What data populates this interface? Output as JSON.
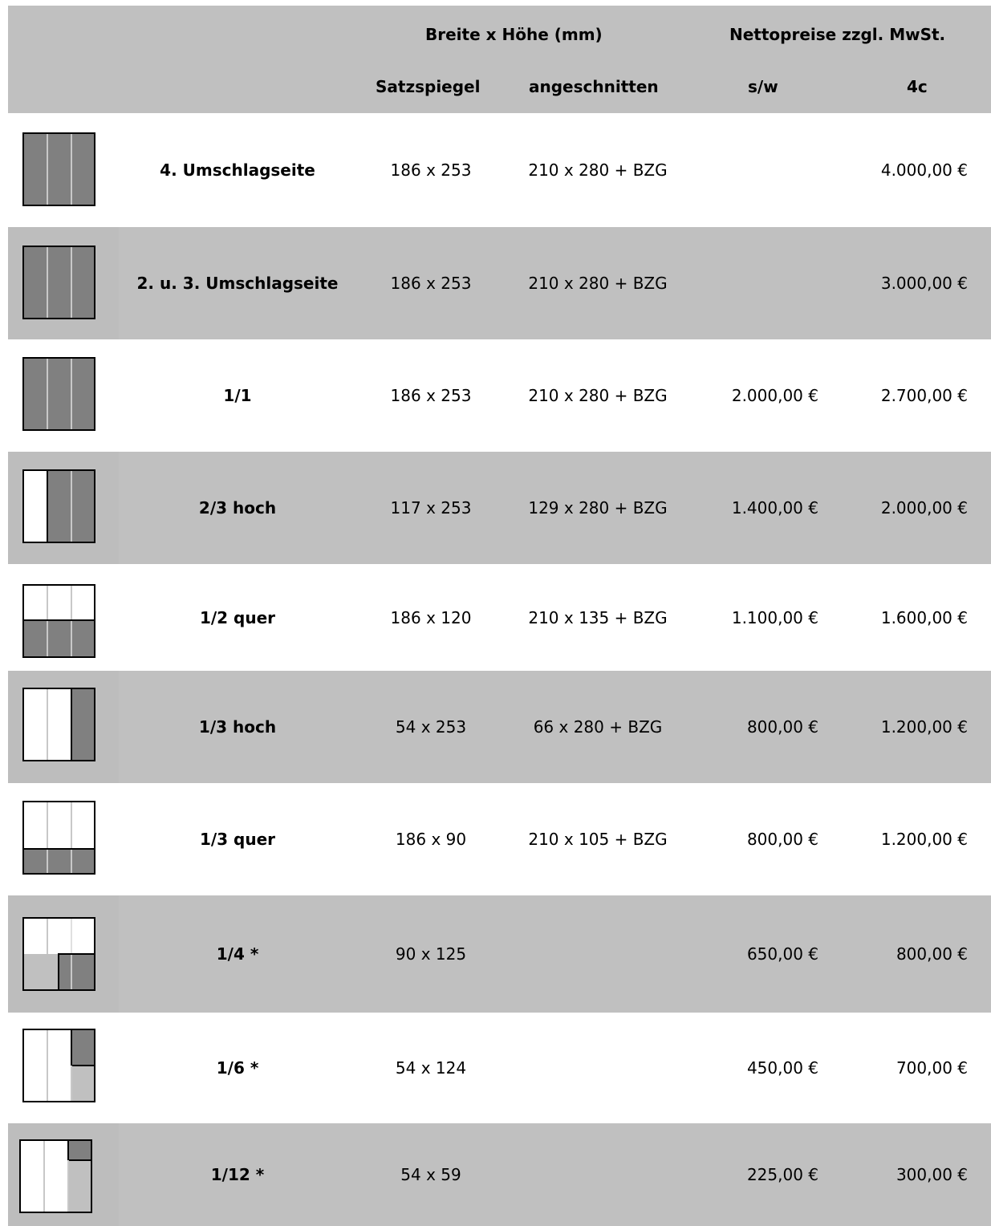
{
  "header": {
    "group_size": "Breite x Höhe (mm)",
    "group_price": "Nettopreise zzgl. MwSt.",
    "col_satz": "Satzspiegel",
    "col_ang": "angeschnitten",
    "col_sw": "s/w",
    "col_4c": "4c"
  },
  "rows": [
    {
      "name": "4. Umschlagseite",
      "satz": "186 x 253",
      "ang": "210 x 280 + BZG",
      "sw": "",
      "c4": "4.000,00 €",
      "icon": "full-page-icon"
    },
    {
      "name": "2. u. 3. Umschlagseite",
      "satz": "186 x 253",
      "ang": "210 x 280 + BZG",
      "sw": "",
      "c4": "3.000,00 €",
      "icon": "full-page-icon"
    },
    {
      "name": "1/1",
      "satz": "186 x 253",
      "ang": "210 x 280 + BZG",
      "sw": "2.000,00 €",
      "c4": "2.700,00 €",
      "icon": "full-page-icon"
    },
    {
      "name": "2/3 hoch",
      "satz": "117 x 253",
      "ang": "129 x 280 + BZG",
      "sw": "1.400,00 €",
      "c4": "2.000,00 €",
      "icon": "two-thirds-vertical-icon"
    },
    {
      "name": "1/2 quer",
      "satz": "186 x 120",
      "ang": "210 x 135 + BZG",
      "sw": "1.100,00 €",
      "c4": "1.600,00 €",
      "icon": "half-horizontal-icon"
    },
    {
      "name": "1/3 hoch",
      "satz": "54 x 253",
      "ang": "66 x 280 + BZG",
      "sw": "800,00 €",
      "c4": "1.200,00 €",
      "icon": "third-vertical-icon"
    },
    {
      "name": "1/3 quer",
      "satz": "186 x 90",
      "ang": "210 x 105 + BZG",
      "sw": "800,00 €",
      "c4": "1.200,00 €",
      "icon": "third-horizontal-icon"
    },
    {
      "name": "1/4 *",
      "satz": "90 x 125",
      "ang": "",
      "sw": "650,00 €",
      "c4": "800,00 €",
      "icon": "quarter-icon"
    },
    {
      "name": "1/6 *",
      "satz": "54 x 124",
      "ang": "",
      "sw": "450,00 €",
      "c4": "700,00 €",
      "icon": "sixth-icon"
    },
    {
      "name": "1/12 *",
      "satz": "54 x 59",
      "ang": "",
      "sw": "225,00 €",
      "c4": "300,00 €",
      "icon": "twelfth-icon"
    }
  ]
}
